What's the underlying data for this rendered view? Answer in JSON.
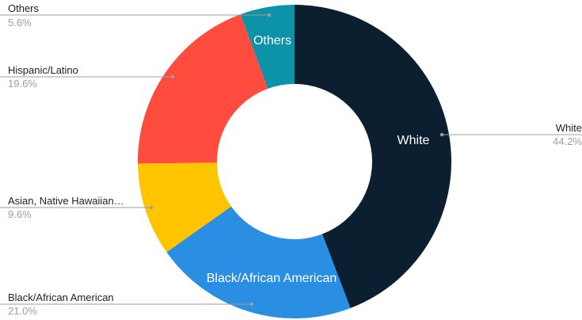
{
  "chart_data": {
    "type": "pie",
    "donut": true,
    "start_angle_deg": 0,
    "direction": "clockwise",
    "slices": [
      {
        "label": "White",
        "callout_label": "White",
        "value": 44.2,
        "value_label": "44.2%",
        "inner_label": "White",
        "color": "#0b1f30"
      },
      {
        "label": "Black/African American",
        "callout_label": "Black/African American",
        "value": 21.0,
        "value_label": "21.0%",
        "inner_label": "Black/African American",
        "color": "#2a8ee3"
      },
      {
        "label": "Asian, Native Hawaiian…",
        "callout_label": "Asian, Native Hawaiian…",
        "value": 9.6,
        "value_label": "9.6%",
        "inner_label": "",
        "color": "#ffc400"
      },
      {
        "label": "Hispanic/Latino",
        "callout_label": "Hispanic/Latino",
        "value": 19.6,
        "value_label": "19.6%",
        "inner_label": "",
        "color": "#ff4c3f"
      },
      {
        "label": "Others",
        "callout_label": "Others",
        "value": 5.6,
        "value_label": "5.6%",
        "inner_label": "Others",
        "color": "#0c93a8"
      }
    ],
    "title": "",
    "legend": "callouts"
  }
}
